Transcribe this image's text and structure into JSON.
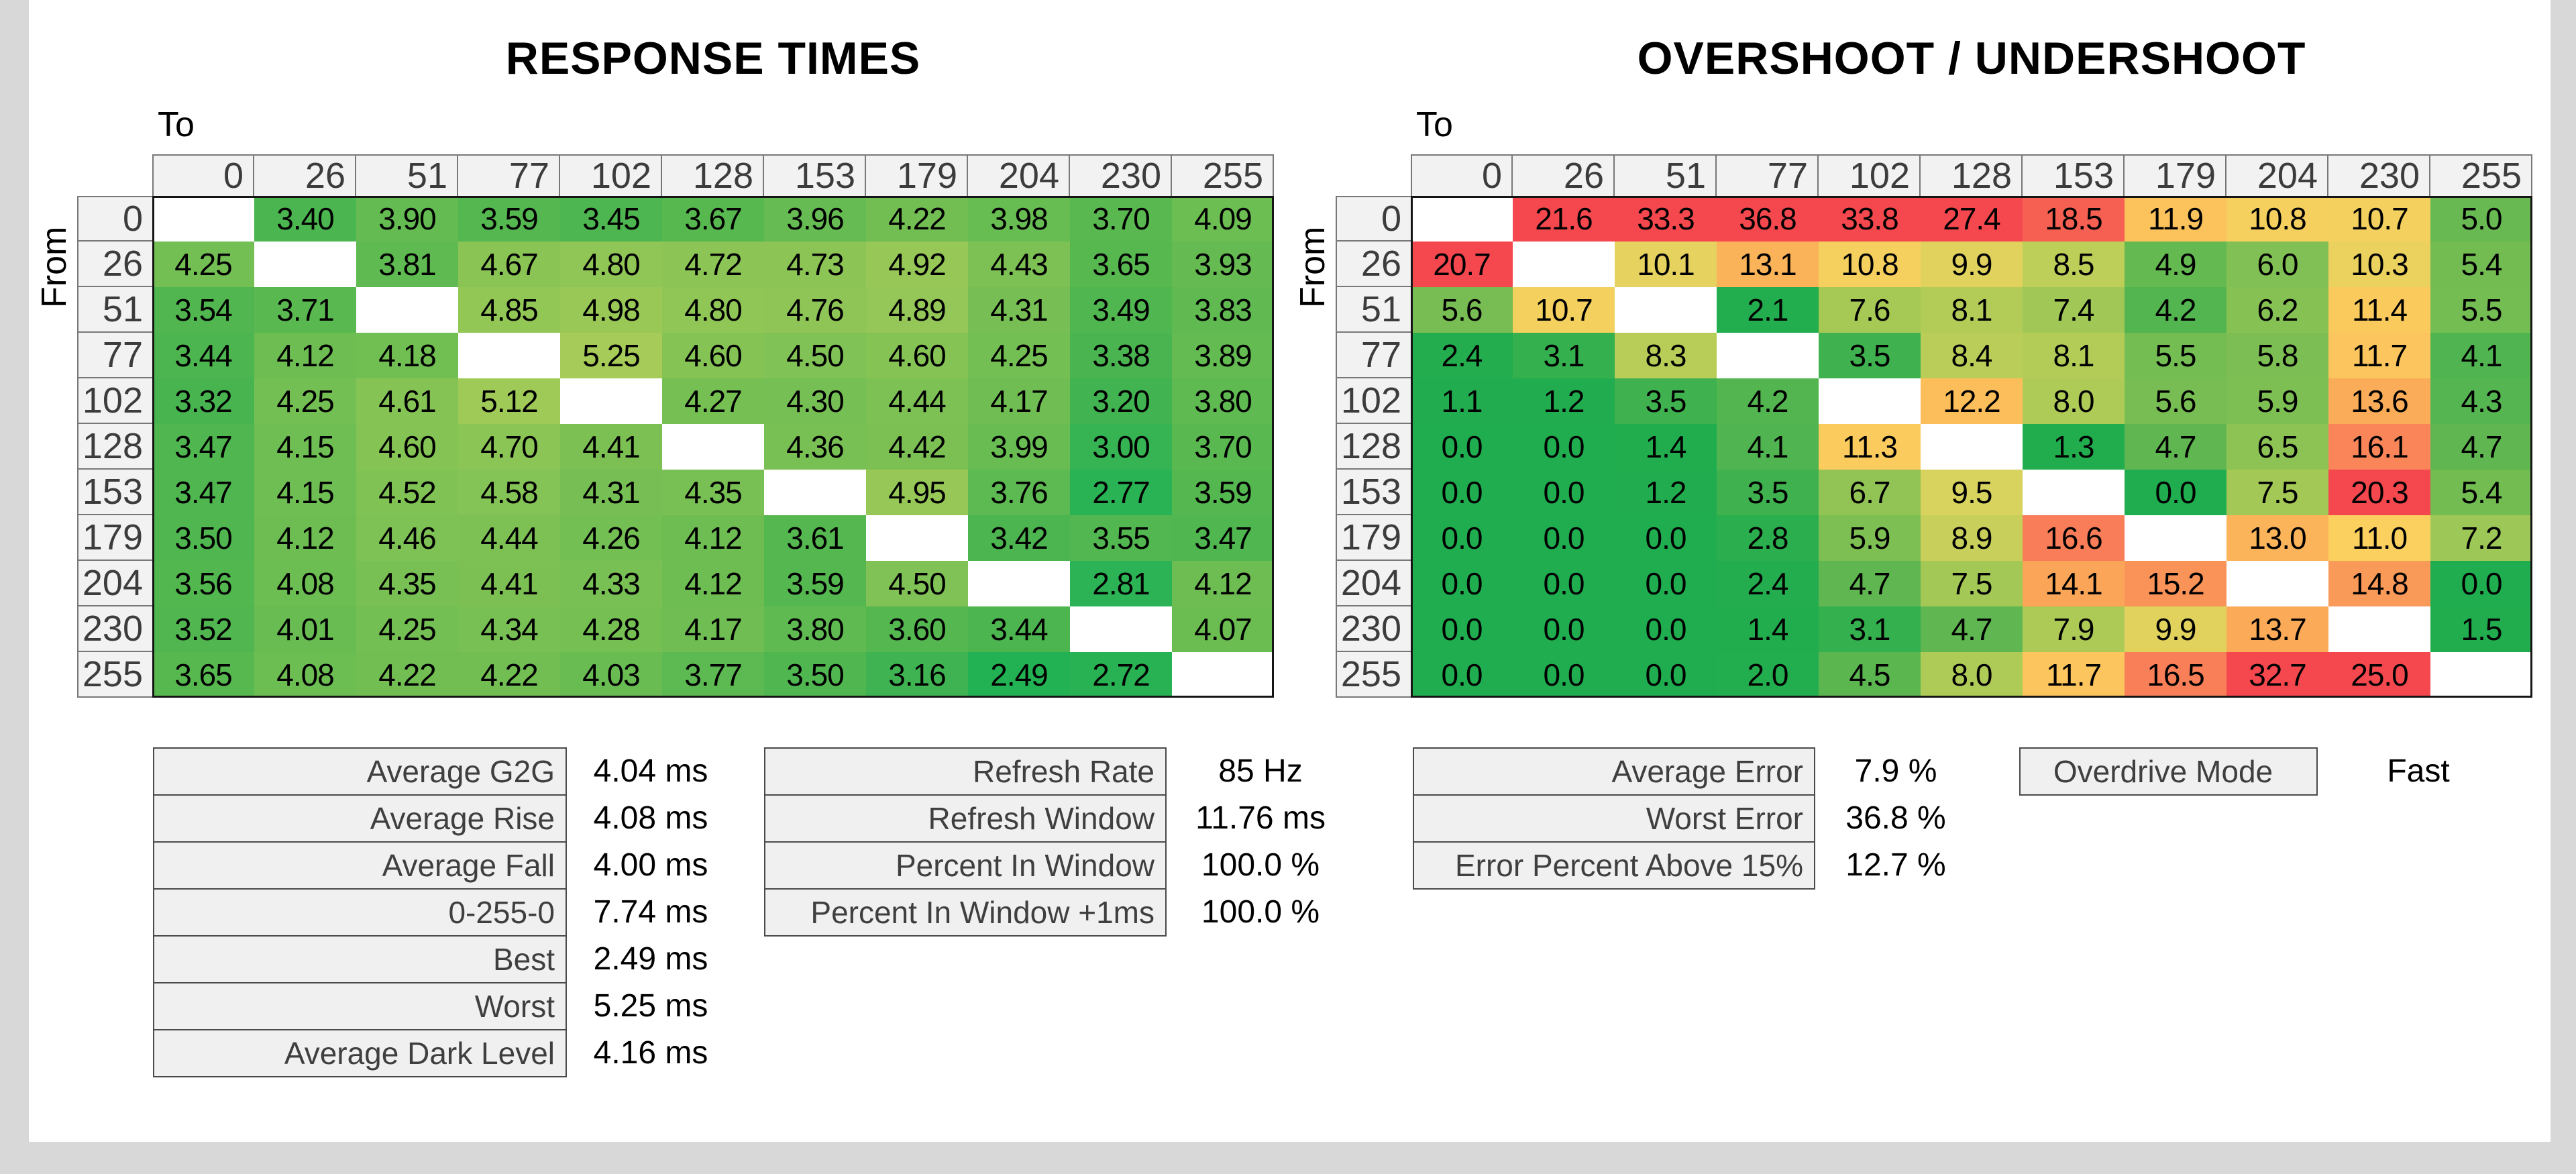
{
  "page": {
    "background": "#D8D8D8",
    "panel_background": "#FFFFFF",
    "header_cell_background": "#F2F2F2",
    "stats_cell_background": "#F0F0F0",
    "diagonal_cell_color": "#FFFFFF"
  },
  "axis_labels": {
    "to": "To",
    "from": "From"
  },
  "chart_data": [
    {
      "type": "heatmap",
      "title": "RESPONSE TIMES",
      "xlabel": "To",
      "ylabel": "From",
      "unit": "ms",
      "decimals": 2,
      "categories": [
        0,
        26,
        51,
        77,
        102,
        128,
        153,
        179,
        204,
        230,
        255
      ],
      "rows": [
        [
          null,
          3.4,
          3.9,
          3.59,
          3.45,
          3.67,
          3.96,
          4.22,
          3.98,
          3.7,
          4.09
        ],
        [
          4.25,
          null,
          3.81,
          4.67,
          4.8,
          4.72,
          4.73,
          4.92,
          4.43,
          3.65,
          3.93
        ],
        [
          3.54,
          3.71,
          null,
          4.85,
          4.98,
          4.8,
          4.76,
          4.89,
          4.31,
          3.49,
          3.83
        ],
        [
          3.44,
          4.12,
          4.18,
          null,
          5.25,
          4.6,
          4.5,
          4.6,
          4.25,
          3.38,
          3.89
        ],
        [
          3.32,
          4.25,
          4.61,
          5.12,
          null,
          4.27,
          4.3,
          4.44,
          4.17,
          3.2,
          3.8
        ],
        [
          3.47,
          4.15,
          4.6,
          4.7,
          4.41,
          null,
          4.36,
          4.42,
          3.99,
          3.0,
          3.7
        ],
        [
          3.47,
          4.15,
          4.52,
          4.58,
          4.31,
          4.35,
          null,
          4.95,
          3.76,
          2.77,
          3.59
        ],
        [
          3.5,
          4.12,
          4.46,
          4.44,
          4.26,
          4.12,
          3.61,
          null,
          3.42,
          3.55,
          3.47
        ],
        [
          3.56,
          4.08,
          4.35,
          4.41,
          4.33,
          4.12,
          3.59,
          4.5,
          null,
          2.81,
          4.12
        ],
        [
          3.52,
          4.01,
          4.25,
          4.34,
          4.28,
          4.17,
          3.8,
          3.6,
          3.44,
          null,
          4.07
        ],
        [
          3.65,
          4.08,
          4.22,
          4.22,
          4.03,
          3.77,
          3.5,
          3.16,
          2.49,
          2.72,
          null
        ]
      ],
      "color_scale": [
        [
          2.4,
          "#1FB052"
        ],
        [
          2.8,
          "#2BB355"
        ],
        [
          3.2,
          "#41B350"
        ],
        [
          3.6,
          "#55B750"
        ],
        [
          4.0,
          "#68BC52"
        ],
        [
          4.4,
          "#7BC054"
        ],
        [
          4.8,
          "#90C656"
        ],
        [
          5.3,
          "#A8CC59"
        ]
      ]
    },
    {
      "type": "heatmap",
      "title": "OVERSHOOT / UNDERSHOOT",
      "xlabel": "To",
      "ylabel": "From",
      "unit": "%",
      "decimals": 1,
      "categories": [
        0,
        26,
        51,
        77,
        102,
        128,
        153,
        179,
        204,
        230,
        255
      ],
      "rows": [
        [
          null,
          21.6,
          33.3,
          36.8,
          33.8,
          27.4,
          18.5,
          11.9,
          10.8,
          10.7,
          5.0
        ],
        [
          20.7,
          null,
          10.1,
          13.1,
          10.8,
          9.9,
          8.5,
          4.9,
          6.0,
          10.3,
          5.4
        ],
        [
          5.6,
          10.7,
          null,
          2.1,
          7.6,
          8.1,
          7.4,
          4.2,
          6.2,
          11.4,
          5.5
        ],
        [
          2.4,
          3.1,
          8.3,
          null,
          3.5,
          8.4,
          8.1,
          5.5,
          5.8,
          11.7,
          4.1
        ],
        [
          1.1,
          1.2,
          3.5,
          4.2,
          null,
          12.2,
          8.0,
          5.6,
          5.9,
          13.6,
          4.3
        ],
        [
          0.0,
          0.0,
          1.4,
          4.1,
          11.3,
          null,
          1.3,
          4.7,
          6.5,
          16.1,
          4.7
        ],
        [
          0.0,
          0.0,
          1.2,
          3.5,
          6.7,
          9.5,
          null,
          0.0,
          7.5,
          20.3,
          5.4
        ],
        [
          0.0,
          0.0,
          0.0,
          2.8,
          5.9,
          8.9,
          16.6,
          null,
          13.0,
          11.0,
          7.2
        ],
        [
          0.0,
          0.0,
          0.0,
          2.4,
          4.7,
          7.5,
          14.1,
          15.2,
          null,
          14.8,
          0.0
        ],
        [
          0.0,
          0.0,
          0.0,
          1.4,
          3.1,
          4.7,
          7.9,
          9.9,
          13.7,
          null,
          1.5
        ],
        [
          0.0,
          0.0,
          0.0,
          2.0,
          4.5,
          8.0,
          11.7,
          16.5,
          32.7,
          25.0,
          null
        ]
      ],
      "color_scale": [
        [
          0,
          "#1FAD4F"
        ],
        [
          2.5,
          "#23AD4E"
        ],
        [
          4.5,
          "#5BB650"
        ],
        [
          6.5,
          "#8DC355"
        ],
        [
          8,
          "#AFCB57"
        ],
        [
          9.5,
          "#D8D35E"
        ],
        [
          11,
          "#FBD05E"
        ],
        [
          12,
          "#FCC05C"
        ],
        [
          13.5,
          "#FBAE58"
        ],
        [
          16.5,
          "#F97F58"
        ],
        [
          20,
          "#F4484E"
        ],
        [
          40,
          "#F4484E"
        ]
      ]
    }
  ],
  "stats_tables": {
    "response": {
      "rows": [
        {
          "label": "Average G2G",
          "value": "4.04 ms"
        },
        {
          "label": "Average Rise",
          "value": "4.08 ms"
        },
        {
          "label": "Average Fall",
          "value": "4.00 ms"
        },
        {
          "label": "0-255-0",
          "value": "7.74 ms"
        },
        {
          "label": "Best",
          "value": "2.49 ms"
        },
        {
          "label": "Worst",
          "value": "5.25 ms"
        },
        {
          "label": "Average Dark Level",
          "value": "4.16 ms"
        }
      ]
    },
    "refresh": {
      "rows": [
        {
          "label": "Refresh Rate",
          "value": "85 Hz"
        },
        {
          "label": "Refresh Window",
          "value": "11.76 ms"
        },
        {
          "label": "Percent In Window",
          "value": "100.0 %"
        },
        {
          "label": "Percent In Window +1ms",
          "value": "100.0 %"
        }
      ]
    },
    "error": {
      "rows": [
        {
          "label": "Average Error",
          "value": "7.9 %"
        },
        {
          "label": "Worst Error",
          "value": "36.8 %"
        },
        {
          "label": "Error Percent Above 15%",
          "value": "12.7 %"
        }
      ]
    },
    "overdrive": {
      "label": "Overdrive Mode",
      "value": "Fast"
    }
  }
}
